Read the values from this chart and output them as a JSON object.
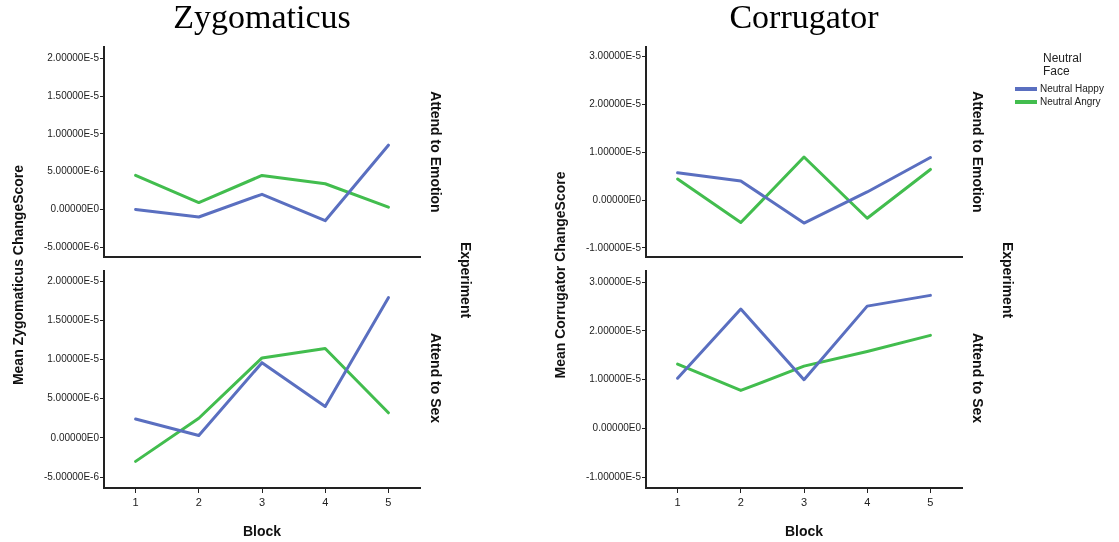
{
  "chart_data": [
    {
      "type": "line",
      "title": "Zygomaticus",
      "ylabel": "Mean Zygomaticus ChangeScore",
      "y2label": "Attend to Emotion",
      "annotations": [
        "Experiment"
      ],
      "categories": [
        "1",
        "2",
        "3",
        "4",
        "5"
      ],
      "tick_labels": "y",
      "marker": "none",
      "line_style": "solid",
      "ylim": [
        -6.3e-06,
        2.15e-05
      ],
      "yticks": [
        {
          "value": -5e-06,
          "label": "-5.00000E-6"
        },
        {
          "value": 0,
          "label": "0.00000E0"
        },
        {
          "value": 5e-06,
          "label": "5.00000E-6"
        },
        {
          "value": 1e-05,
          "label": "1.00000E-5"
        },
        {
          "value": 1.5e-05,
          "label": "1.50000E-5"
        },
        {
          "value": 2e-05,
          "label": "2.00000E-5"
        }
      ],
      "series": [
        {
          "color": "#5a6fc0",
          "values": [
            0,
            -1e-06,
            2e-06,
            -1.5e-06,
            8.5e-06
          ]
        },
        {
          "color": "#42bd4e",
          "values": [
            4.5e-06,
            9e-07,
            4.5e-06,
            3.4e-06,
            3e-07
          ]
        }
      ]
    },
    {
      "type": "line",
      "xlabel": "Block",
      "y2label": "Attend to Sex",
      "categories": [
        "1",
        "2",
        "3",
        "4",
        "5"
      ],
      "marker": "none",
      "line_style": "solid",
      "ylim": [
        -6.4e-06,
        2.13e-05
      ],
      "yticks": [
        {
          "value": -5e-06,
          "label": "-5.00000E-6"
        },
        {
          "value": 0,
          "label": "0.00000E0"
        },
        {
          "value": 5e-06,
          "label": "5.00000E-6"
        },
        {
          "value": 1e-05,
          "label": "1.00000E-5"
        },
        {
          "value": 1.5e-05,
          "label": "1.50000E-5"
        },
        {
          "value": 2e-05,
          "label": "2.00000E-5"
        }
      ],
      "series": [
        {
          "color": "#5a6fc0",
          "values": [
            2.4e-06,
            3e-07,
            9.6e-06,
            4e-06,
            1.79e-05
          ]
        },
        {
          "color": "#42bd4e",
          "values": [
            -3e-06,
            2.5e-06,
            1.02e-05,
            1.14e-05,
            3.2e-06
          ]
        }
      ]
    },
    {
      "type": "line",
      "title": "Corrugator",
      "ylabel": "Mean Corrugator ChangeScore",
      "y2label": "Attend to Emotion",
      "annotations": [
        "Experiment"
      ],
      "legend_title": "Neutral Face",
      "legend": "right",
      "categories": [
        "1",
        "2",
        "3",
        "4",
        "5"
      ],
      "tick_labels": "y",
      "marker": "none",
      "line_style": "solid",
      "ylim": [
        -1.19e-05,
        3.2e-05
      ],
      "yticks": [
        {
          "value": -1e-05,
          "label": "-1.00000E-5"
        },
        {
          "value": 0,
          "label": "0.00000E0"
        },
        {
          "value": 1e-05,
          "label": "1.00000E-5"
        },
        {
          "value": 2e-05,
          "label": "2.00000E-5"
        },
        {
          "value": 3e-05,
          "label": "3.00000E-5"
        }
      ],
      "series": [
        {
          "name": "Neutral Happy",
          "color": "#5a6fc0",
          "values": [
            5.7e-06,
            4e-06,
            -4.8e-06,
            1.7e-06,
            8.9e-06
          ]
        },
        {
          "name": "Neutral Angry",
          "color": "#42bd4e",
          "values": [
            4.4e-06,
            -4.7e-06,
            9e-06,
            -3.8e-06,
            6.4e-06
          ]
        }
      ]
    },
    {
      "type": "line",
      "xlabel": "Block",
      "y2label": "Attend to Sex",
      "categories": [
        "1",
        "2",
        "3",
        "4",
        "5"
      ],
      "marker": "none",
      "line_style": "solid",
      "ylim": [
        -1.22e-05,
        3.23e-05
      ],
      "yticks": [
        {
          "value": -1e-05,
          "label": "-1.00000E-5"
        },
        {
          "value": 0,
          "label": "0.00000E0"
        },
        {
          "value": 1e-05,
          "label": "1.00000E-5"
        },
        {
          "value": 2e-05,
          "label": "2.00000E-5"
        },
        {
          "value": 3e-05,
          "label": "3.00000E-5"
        }
      ],
      "series": [
        {
          "color": "#5a6fc0",
          "values": [
            1.03e-05,
            2.45e-05,
            1e-05,
            2.51e-05,
            2.73e-05
          ]
        },
        {
          "color": "#42bd4e",
          "values": [
            1.32e-05,
            7.8e-06,
            1.28e-05,
            1.58e-05,
            1.91e-05
          ]
        }
      ]
    }
  ]
}
